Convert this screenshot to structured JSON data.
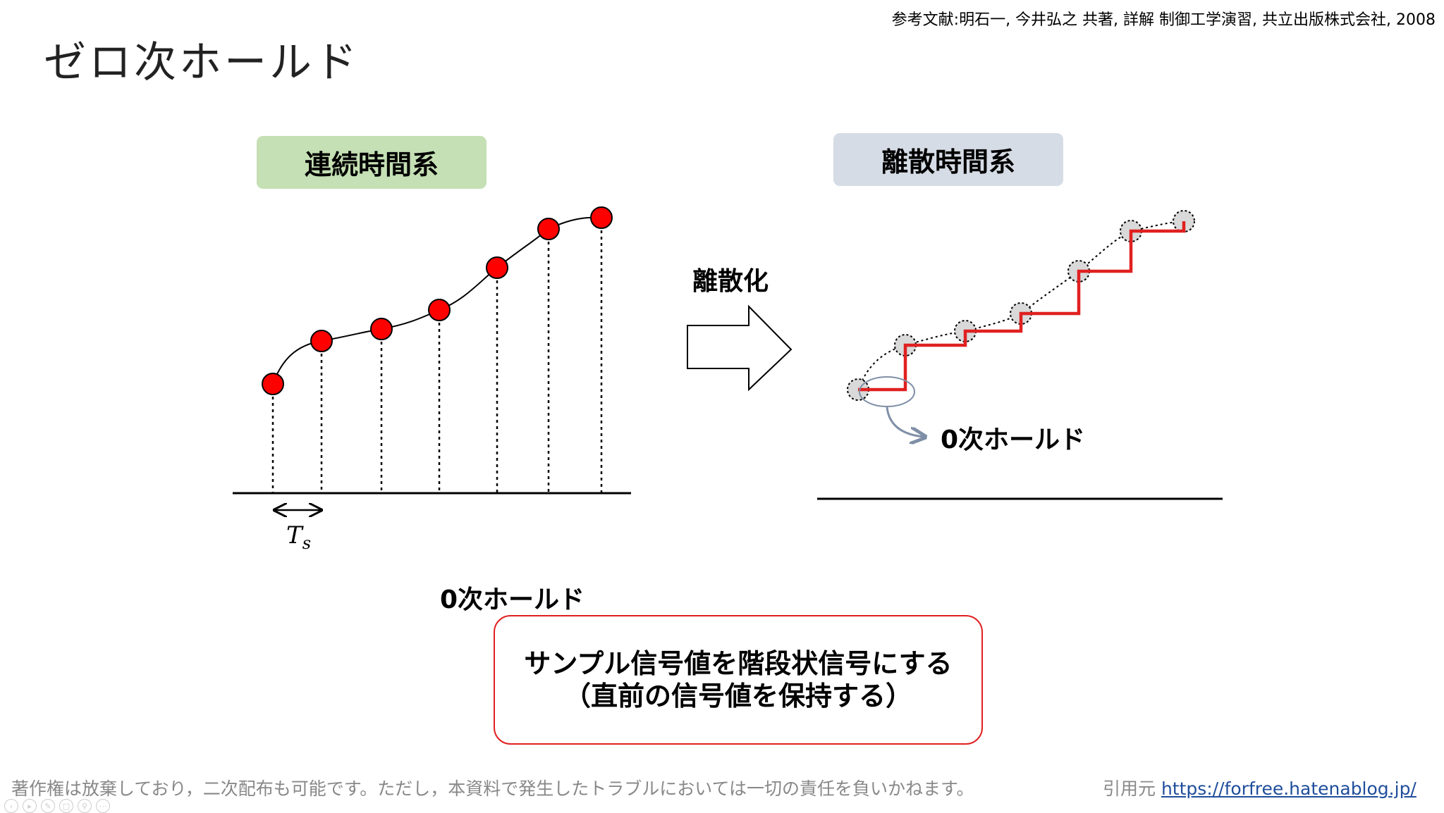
{
  "reference": "参考文献:明石一, 今井弘之 共著, 詳解 制御工学演習, 共立出版株式会社, 2008",
  "title": "ゼロ次ホールド",
  "continuous_label": "連続時間系",
  "discrete_label": "離散時間系",
  "discretize_label": "離散化",
  "ts_label": "T",
  "ts_sub": "s",
  "zoh_label_right": "0次ホールド",
  "zoh_label_bottom": "0次ホールド",
  "description": {
    "line1": "サンプル信号値を階段状信号にする",
    "line2": "（直前の信号値を保持する）"
  },
  "footer": {
    "note": "著作権は放棄しており，二次配布も可能です。ただし，本資料で発生したトラブルにおいては一切の責任を負いかねます。",
    "source_prefix": "引用元 ",
    "source_url": "https://forfree.hatenablog.jp/"
  },
  "colors": {
    "continuous_pill": "#c5e0b4",
    "discrete_pill": "#d6dce5",
    "sample_point": "#ff0000",
    "zoh_line": "#e02020",
    "ghost_point": "#d9d9d9"
  },
  "slide_controls": [
    "prev-icon",
    "play-icon",
    "pen-icon",
    "slides-icon",
    "zoom-icon",
    "more-icon"
  ]
}
